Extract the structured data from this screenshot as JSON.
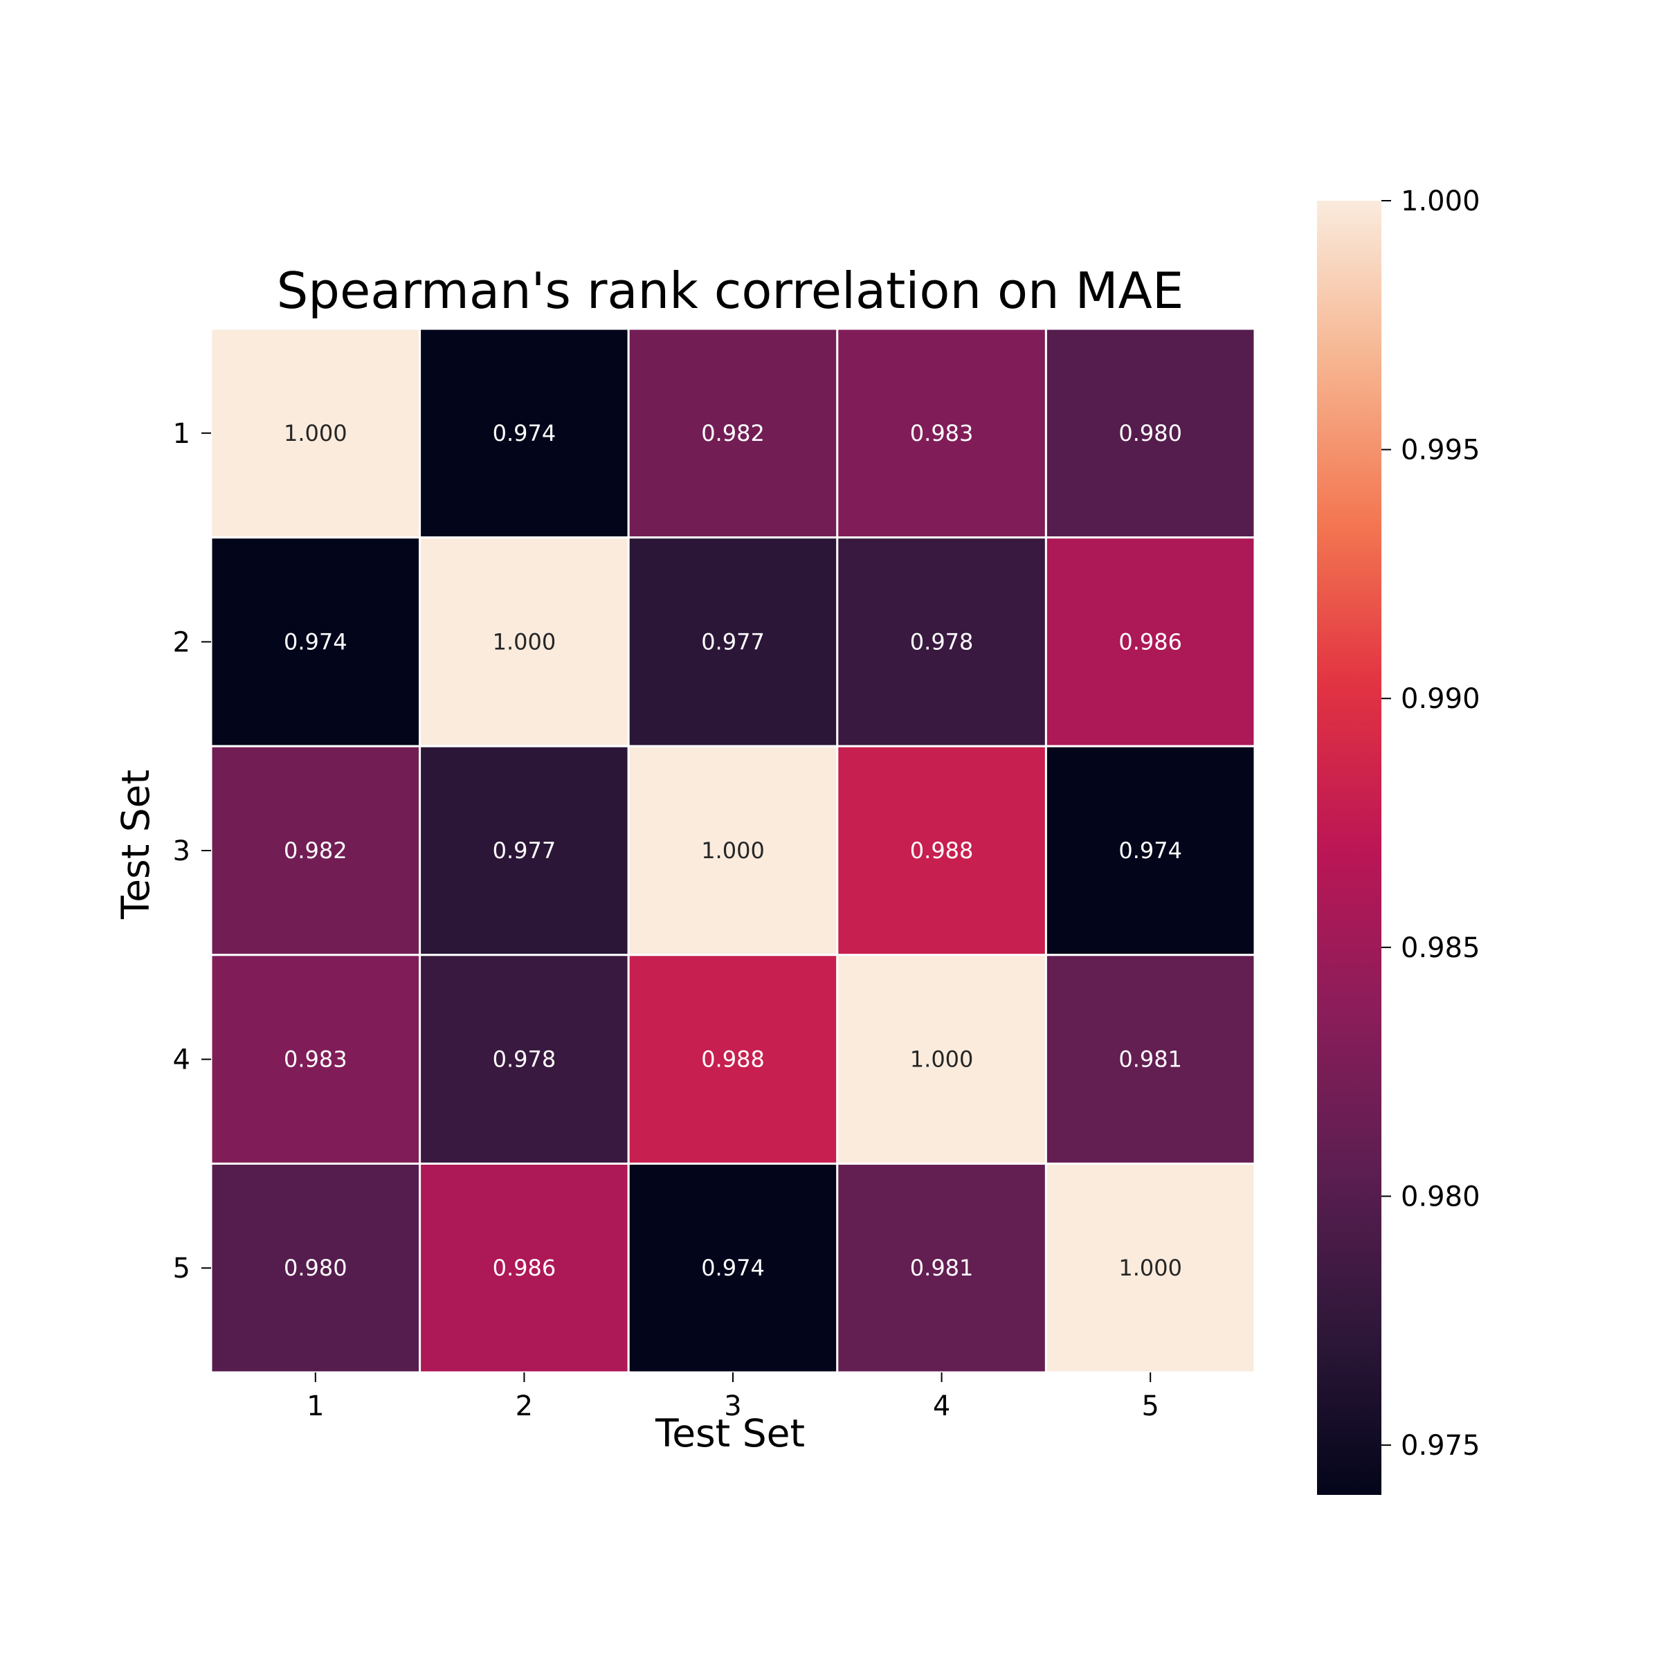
{
  "chart_data": {
    "type": "heatmap",
    "title": "Spearman's rank correlation on MAE",
    "xlabel": "Test Set",
    "ylabel": "Test Set",
    "x_categories": [
      "1",
      "2",
      "3",
      "4",
      "5"
    ],
    "y_categories": [
      "1",
      "2",
      "3",
      "4",
      "5"
    ],
    "values": [
      [
        1.0,
        0.974,
        0.982,
        0.983,
        0.98
      ],
      [
        0.974,
        1.0,
        0.977,
        0.978,
        0.986
      ],
      [
        0.982,
        0.977,
        1.0,
        0.988,
        0.974
      ],
      [
        0.983,
        0.978,
        0.988,
        1.0,
        0.981
      ],
      [
        0.98,
        0.986,
        0.974,
        0.981,
        1.0
      ]
    ],
    "cell_labels": [
      [
        "1.000",
        "0.974",
        "0.982",
        "0.983",
        "0.980"
      ],
      [
        "0.974",
        "1.000",
        "0.977",
        "0.978",
        "0.986"
      ],
      [
        "0.982",
        "0.977",
        "1.000",
        "0.988",
        "0.974"
      ],
      [
        "0.983",
        "0.978",
        "0.988",
        "1.000",
        "0.981"
      ],
      [
        "0.980",
        "0.986",
        "0.974",
        "0.981",
        "1.000"
      ]
    ],
    "colorbar": {
      "range": [
        0.974,
        1.0
      ],
      "ticks": [
        0.975,
        0.98,
        0.985,
        0.99,
        0.995,
        1.0
      ],
      "tick_labels": [
        "0.975",
        "0.980",
        "0.985",
        "0.990",
        "0.995",
        "1.000"
      ],
      "colormap": "rocket",
      "stops": [
        "#03051a",
        "#2e1739",
        "#5c1e51",
        "#8b1d5a",
        "#bc1655",
        "#e13342",
        "#f37651",
        "#f6b48f",
        "#faebdd"
      ]
    },
    "grid": true,
    "cell_border_color": "#ffffff"
  }
}
